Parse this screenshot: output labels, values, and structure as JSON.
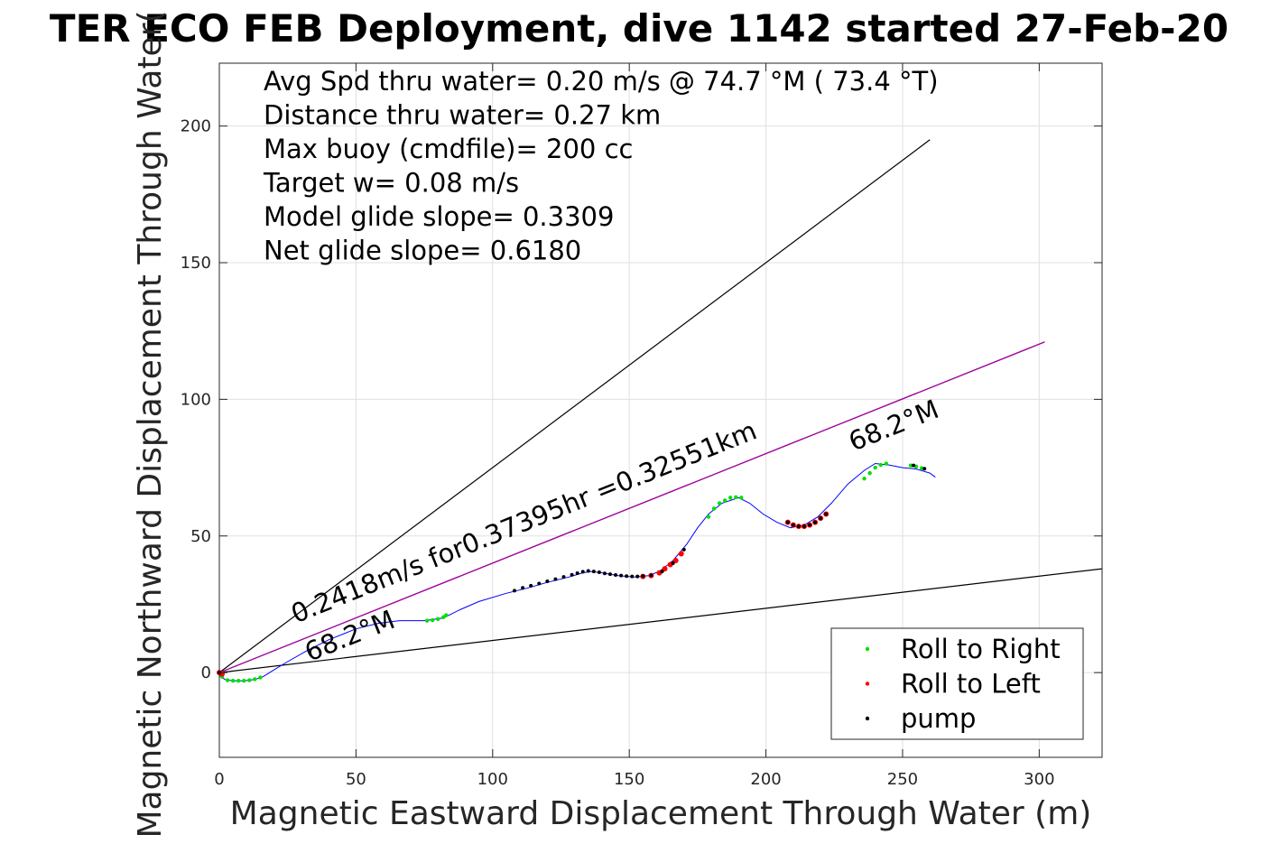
{
  "chart_data": {
    "type": "scatter",
    "title": "TER ECO FEB Deployment, dive 1142 started 27-Feb-20",
    "xlabel": "Magnetic Eastward Displacement Through Water (m)",
    "ylabel": "Magnetic Northward Displacement Through Water(",
    "xlim": [
      0,
      323
    ],
    "ylim": [
      -31,
      223
    ],
    "xticks": [
      "0",
      "50",
      "100",
      "150",
      "200",
      "250",
      "300"
    ],
    "yticks": [
      "0",
      "50",
      "100",
      "150",
      "200"
    ],
    "xtick_values": [
      0,
      50,
      100,
      150,
      200,
      250,
      300
    ],
    "ytick_values": [
      0,
      50,
      100,
      150,
      200
    ],
    "grid": true,
    "info_lines": [
      "Avg Spd thru water=  0.20 m/s @  74.7 °M ( 73.4 °T)",
      "Distance thru water=  0.27 km",
      "Max buoy (cmdfile)= 200 cc",
      "Target w= 0.08 m/s",
      "Model glide slope= 0.3309",
      "Net glide slope= 0.6180"
    ],
    "annotations": [
      {
        "text": "0.2418m/s for0.37395hr =0.32551km",
        "x": 28,
        "y": 18,
        "angle_deg": 21.9
      },
      {
        "text": "68.2°M",
        "x": 33,
        "y": 4,
        "angle_deg": 21.9
      },
      {
        "text": "68.2°M",
        "x": 232,
        "y": 81,
        "angle_deg": 21.9
      }
    ],
    "reference_lines": [
      {
        "x": [
          0,
          260
        ],
        "y": [
          0,
          195
        ],
        "color": "#000000"
      },
      {
        "x": [
          0,
          323
        ],
        "y": [
          0,
          38
        ],
        "color": "#000000"
      },
      {
        "x": [
          0,
          302
        ],
        "y": [
          0,
          121
        ],
        "color": "#000000"
      },
      {
        "x": [
          0,
          302
        ],
        "y": [
          0,
          121
        ],
        "color": "#b000b0"
      }
    ],
    "track": {
      "color": "#0000ff",
      "x": [
        0,
        2,
        5,
        9,
        13,
        16,
        20,
        25,
        32,
        40,
        50,
        58,
        66,
        75,
        82,
        88,
        95,
        105,
        113,
        120,
        128,
        133,
        136,
        140,
        146,
        152,
        157,
        161,
        166,
        171,
        175,
        179,
        184,
        190,
        194,
        199,
        204,
        209,
        214,
        219,
        224,
        230,
        236,
        240,
        245,
        250,
        255,
        260,
        262
      ],
      "y": [
        -1,
        -2.5,
        -3,
        -3,
        -2.5,
        -1.5,
        1,
        4,
        8,
        12,
        16,
        18,
        19,
        19,
        20,
        23,
        26,
        29,
        31,
        33,
        35,
        36.5,
        37,
        36.5,
        35.5,
        35,
        35.5,
        37,
        41,
        47,
        53,
        58,
        62,
        64,
        62,
        58,
        55,
        53,
        54,
        57,
        62,
        69,
        74,
        76.5,
        76,
        75,
        74.5,
        73,
        71.5
      ]
    },
    "series": [
      {
        "name": "Roll to Right",
        "color": "#00e000",
        "x": [
          1,
          3,
          5,
          7,
          9,
          11,
          13,
          15,
          76,
          78,
          80,
          82,
          83,
          179,
          181,
          183,
          185,
          187,
          189,
          191,
          236,
          238,
          240,
          242,
          244,
          253,
          255,
          257
        ],
        "y": [
          -1.5,
          -2.8,
          -3,
          -3,
          -3,
          -2.8,
          -2.4,
          -1.8,
          19,
          19.2,
          19.6,
          20.3,
          21,
          57,
          60,
          62,
          63,
          64,
          64.2,
          64,
          71,
          73,
          75,
          76,
          76.5,
          75.8,
          75.4,
          74.8
        ]
      },
      {
        "name": "Roll to Left",
        "color": "#ff0000",
        "x": [
          0,
          1,
          155,
          158,
          161,
          163,
          165,
          167,
          169,
          208,
          210,
          212,
          214,
          216,
          218,
          220,
          222
        ],
        "y": [
          0,
          -0.5,
          35.2,
          35.5,
          36.5,
          38,
          39.5,
          41,
          43.5,
          55,
          54,
          53.5,
          53.5,
          54,
          55,
          56.5,
          58
        ],
        "marker_size": 3
      },
      {
        "name": "pump",
        "color": "#000000",
        "x": [
          0,
          108,
          111,
          114,
          117,
          120,
          123,
          126,
          129,
          131,
          133,
          135,
          137,
          139,
          141,
          143,
          145,
          147,
          149,
          151,
          153,
          155,
          158,
          162,
          166,
          170,
          208,
          210,
          212,
          214,
          216,
          218,
          220,
          222,
          254,
          258
        ],
        "y": [
          0,
          30,
          31,
          31.8,
          32.6,
          33.4,
          34.2,
          35,
          35.8,
          36.4,
          36.9,
          37.2,
          37,
          36.7,
          36.3,
          36,
          35.7,
          35.5,
          35.3,
          35.2,
          35.2,
          35.3,
          35.6,
          37,
          40,
          45,
          55,
          54,
          53.5,
          53.5,
          54,
          55,
          56.5,
          58,
          75.8,
          74.6
        ],
        "marker_size": 2
      }
    ],
    "legend": {
      "placement": "bottom-right",
      "entries": [
        "Roll to Right",
        "Roll to Left",
        "pump"
      ]
    }
  }
}
